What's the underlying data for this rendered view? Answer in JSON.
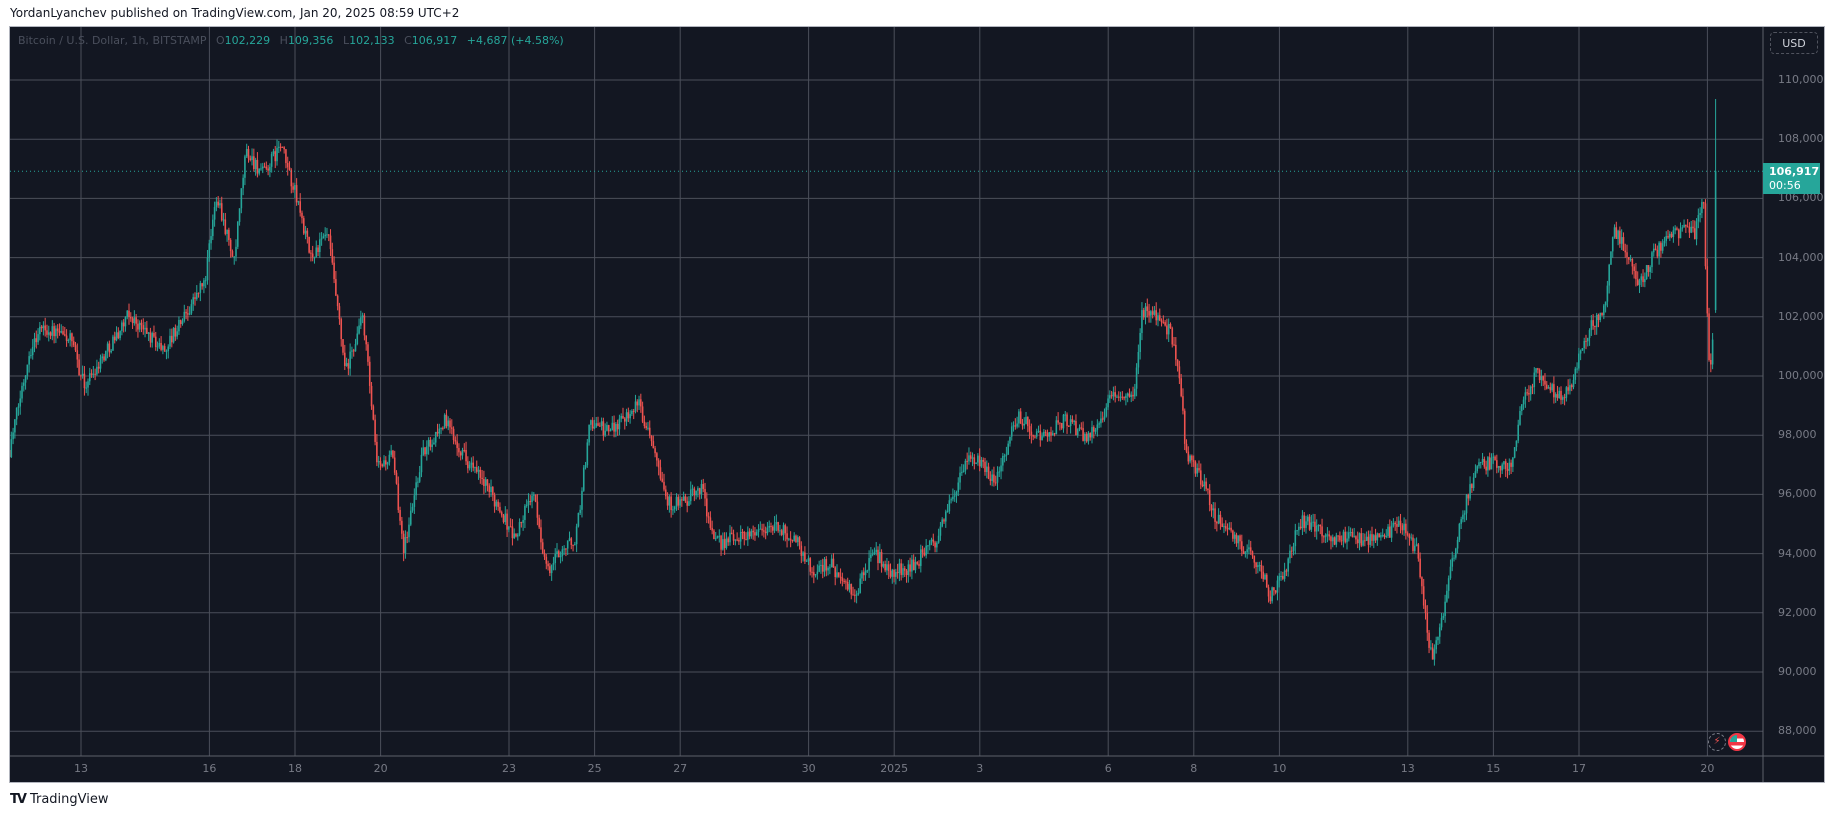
{
  "publisher_line": "YordanLyanchev published on TradingView.com, Jan 20, 2025 08:59 UTC+2",
  "legend": {
    "symbol": "Bitcoin / U.S. Dollar, 1h, BITSTAMP",
    "open_label": "O",
    "open": "102,229",
    "high_label": "H",
    "high": "109,356",
    "low_label": "L",
    "low": "102,133",
    "close_label": "C",
    "close": "106,917",
    "change": "+4,687 (+4.58%)"
  },
  "currency_button": "USD",
  "last_price": {
    "value": "106,917",
    "countdown": "00:56"
  },
  "footer_brand": "TradingView",
  "colors": {
    "background": "#131722",
    "up": "#26a69a",
    "down": "#ef5350",
    "grid": "#4b4f5a"
  },
  "chart_data": {
    "type": "candlestick",
    "title": "Bitcoin / U.S. Dollar, 1h, BITSTAMP",
    "interval": "1h",
    "y_ticks": [
      "88,000",
      "90,000",
      "92,000",
      "94,000",
      "96,000",
      "98,000",
      "100,000",
      "102,000",
      "104,000",
      "106,000",
      "108,000",
      "110,000"
    ],
    "y_tick_values": [
      88000,
      90000,
      92000,
      94000,
      96000,
      98000,
      100000,
      102000,
      104000,
      106000,
      108000,
      110000
    ],
    "ylim": [
      87000,
      111500
    ],
    "x_ticks": [
      {
        "label": "13",
        "day": 0
      },
      {
        "label": "16",
        "day": 3
      },
      {
        "label": "18",
        "day": 5
      },
      {
        "label": "20",
        "day": 7
      },
      {
        "label": "23",
        "day": 10
      },
      {
        "label": "25",
        "day": 12
      },
      {
        "label": "27",
        "day": 14
      },
      {
        "label": "30",
        "day": 17
      },
      {
        "label": "2025",
        "day": 19
      },
      {
        "label": "3",
        "day": 21
      },
      {
        "label": "6",
        "day": 24
      },
      {
        "label": "8",
        "day": 26
      },
      {
        "label": "10",
        "day": 28
      },
      {
        "label": "13",
        "day": 31
      },
      {
        "label": "15",
        "day": 33
      },
      {
        "label": "17",
        "day": 35
      },
      {
        "label": "20",
        "day": 38
      }
    ],
    "x_axis_note": "day = days since Dec 13, 2024",
    "price_path_days_vs_close": [
      [
        -1.67,
        97500
      ],
      [
        -1.2,
        100860
      ],
      [
        -0.93,
        101650
      ],
      [
        -0.25,
        101250
      ],
      [
        0.08,
        99670
      ],
      [
        1.12,
        102050
      ],
      [
        1.94,
        100860
      ],
      [
        2.9,
        103230
      ],
      [
        3.17,
        106200
      ],
      [
        3.58,
        103800
      ],
      [
        3.85,
        107600
      ],
      [
        4.26,
        106800
      ],
      [
        4.67,
        107800
      ],
      [
        5.08,
        105800
      ],
      [
        5.36,
        104000
      ],
      [
        5.77,
        104800
      ],
      [
        6.18,
        100070
      ],
      [
        6.59,
        102050
      ],
      [
        6.92,
        96900
      ],
      [
        7.27,
        97300
      ],
      [
        7.55,
        94130
      ],
      [
        7.96,
        97300
      ],
      [
        8.5,
        98500
      ],
      [
        9.05,
        97100
      ],
      [
        9.73,
        95700
      ],
      [
        10.14,
        94500
      ],
      [
        10.55,
        96100
      ],
      [
        10.9,
        93340
      ],
      [
        11.2,
        94130
      ],
      [
        11.56,
        94500
      ],
      [
        11.9,
        98500
      ],
      [
        12.3,
        98100
      ],
      [
        13.0,
        99100
      ],
      [
        13.4,
        97700
      ],
      [
        13.7,
        95700
      ],
      [
        14.1,
        95700
      ],
      [
        14.5,
        96300
      ],
      [
        14.8,
        94300
      ],
      [
        15.6,
        94700
      ],
      [
        16.2,
        94900
      ],
      [
        16.7,
        94500
      ],
      [
        17.1,
        93340
      ],
      [
        17.5,
        93730
      ],
      [
        17.8,
        92950
      ],
      [
        18.1,
        92550
      ],
      [
        18.5,
        94130
      ],
      [
        18.9,
        93340
      ],
      [
        19.4,
        93540
      ],
      [
        20.0,
        94500
      ],
      [
        20.4,
        96100
      ],
      [
        20.8,
        97300
      ],
      [
        21.35,
        96500
      ],
      [
        21.9,
        98700
      ],
      [
        22.4,
        97900
      ],
      [
        23.0,
        98500
      ],
      [
        23.5,
        97900
      ],
      [
        24.2,
        99480
      ],
      [
        24.6,
        99100
      ],
      [
        24.8,
        102240
      ],
      [
        25.2,
        102050
      ],
      [
        25.45,
        101450
      ],
      [
        25.7,
        99670
      ],
      [
        25.8,
        97500
      ],
      [
        26.1,
        96700
      ],
      [
        26.5,
        95300
      ],
      [
        26.95,
        94500
      ],
      [
        27.5,
        93730
      ],
      [
        27.8,
        92550
      ],
      [
        28.05,
        93140
      ],
      [
        28.5,
        95120
      ],
      [
        28.9,
        94900
      ],
      [
        29.3,
        94500
      ],
      [
        29.8,
        94500
      ],
      [
        30.4,
        94500
      ],
      [
        30.8,
        95120
      ],
      [
        31.2,
        94130
      ],
      [
        31.5,
        90970
      ],
      [
        31.6,
        90400
      ],
      [
        31.9,
        92550
      ],
      [
        32.2,
        94900
      ],
      [
        32.6,
        96900
      ],
      [
        33.0,
        97100
      ],
      [
        33.4,
        96900
      ],
      [
        33.7,
        99280
      ],
      [
        34.0,
        100070
      ],
      [
        34.5,
        99280
      ],
      [
        34.8,
        99670
      ],
      [
        35.2,
        101450
      ],
      [
        35.6,
        102440
      ],
      [
        35.8,
        105000
      ],
      [
        36.1,
        104220
      ],
      [
        36.4,
        103040
      ],
      [
        36.8,
        104220
      ],
      [
        37.2,
        104800
      ],
      [
        37.6,
        105000
      ],
      [
        37.7,
        104800
      ],
      [
        37.9,
        106200
      ],
      [
        37.97,
        103230
      ],
      [
        38.05,
        99900
      ],
      [
        38.15,
        101650
      ]
    ],
    "last_candle": {
      "open": 102229,
      "high": 109356,
      "low": 102133,
      "close": 106917
    },
    "current_price": 106917
  }
}
